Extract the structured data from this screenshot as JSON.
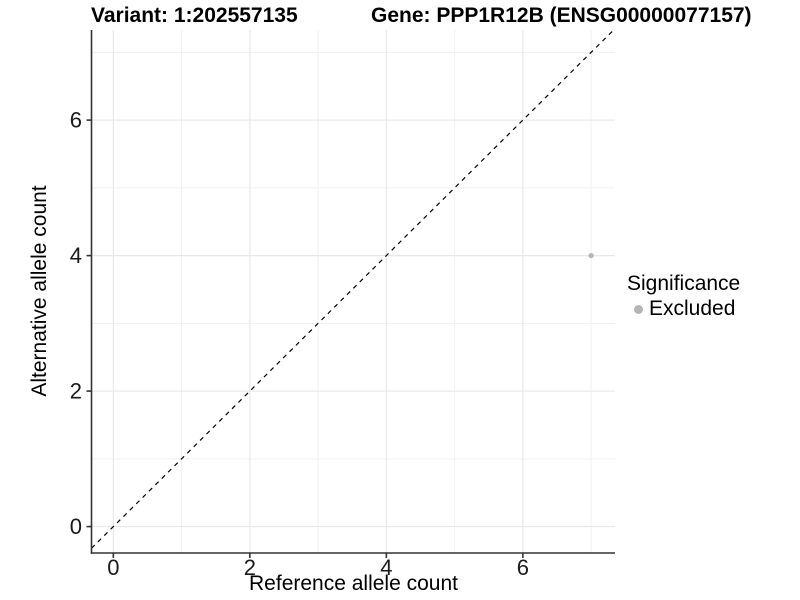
{
  "titles": {
    "left": "Variant: 1:202557135",
    "right": "Gene: PPP1R12B (ENSG00000077157)"
  },
  "chart_data": {
    "type": "scatter",
    "xlabel": "Reference allele count",
    "ylabel": "Alternative allele count",
    "x_ticks": [
      0,
      2,
      4,
      6
    ],
    "y_ticks": [
      0,
      2,
      4,
      6
    ],
    "x_minor_ticks": [
      1,
      3,
      5,
      7
    ],
    "y_minor_ticks": [
      1,
      3,
      5,
      7
    ],
    "xlim": [
      -0.32,
      7.35
    ],
    "ylim": [
      -0.39,
      7.33
    ],
    "grid": "major+minor",
    "points": [
      {
        "x": 7,
        "y": 4,
        "series": "Excluded"
      }
    ],
    "reference_line": {
      "kind": "identity y=x",
      "style": "dashed"
    },
    "legend": {
      "title": "Significance",
      "position": "right",
      "items": [
        {
          "label": "Excluded",
          "color": "#b5b5b5"
        }
      ]
    },
    "colors": {
      "point": "#b5b5b5",
      "grid_major": "#e8e8e8",
      "grid_minor": "#f1f1f1",
      "axis": "#333333",
      "tick_text": "#1a1a1a",
      "dashed_line": "#000000"
    }
  }
}
